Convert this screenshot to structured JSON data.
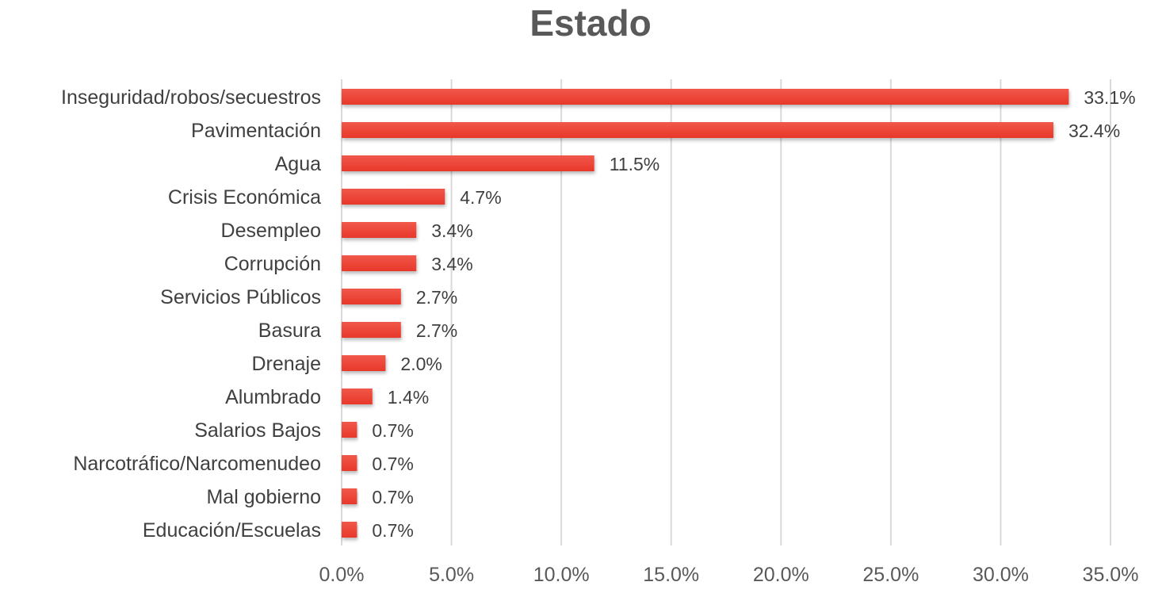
{
  "chart_data": {
    "type": "bar",
    "orientation": "horizontal",
    "title": "Estado",
    "xlabel": "",
    "ylabel": "",
    "categories": [
      "Inseguridad/robos/secuestros",
      "Pavimentación",
      "Agua",
      "Crisis Económica",
      "Desempleo",
      "Corrupción",
      "Servicios Públicos",
      "Basura",
      "Drenaje",
      "Alumbrado",
      "Salarios Bajos",
      "Narcotráfico/Narcomenudeo",
      "Mal gobierno",
      "Educación/Escuelas"
    ],
    "values": [
      33.1,
      32.4,
      11.5,
      4.7,
      3.4,
      3.4,
      2.7,
      2.7,
      2.0,
      1.4,
      0.7,
      0.7,
      0.7,
      0.7
    ],
    "value_labels": [
      "33.1%",
      "32.4%",
      "11.5%",
      "4.7%",
      "3.4%",
      "3.4%",
      "2.7%",
      "2.7%",
      "2.0%",
      "1.4%",
      "0.7%",
      "0.7%",
      "0.7%",
      "0.7%"
    ],
    "xlim": [
      0,
      35
    ],
    "xticks": [
      0,
      5,
      10,
      15,
      20,
      25,
      30,
      35
    ],
    "xtick_labels": [
      "0.0%",
      "5.0%",
      "10.0%",
      "15.0%",
      "20.0%",
      "25.0%",
      "30.0%",
      "35.0%"
    ],
    "grid": true,
    "legend": "none",
    "bar_color": "#e8372a",
    "bar_color_light": "#f0584a",
    "grid_color": "#d9d9d9",
    "text_color": "#404040"
  }
}
